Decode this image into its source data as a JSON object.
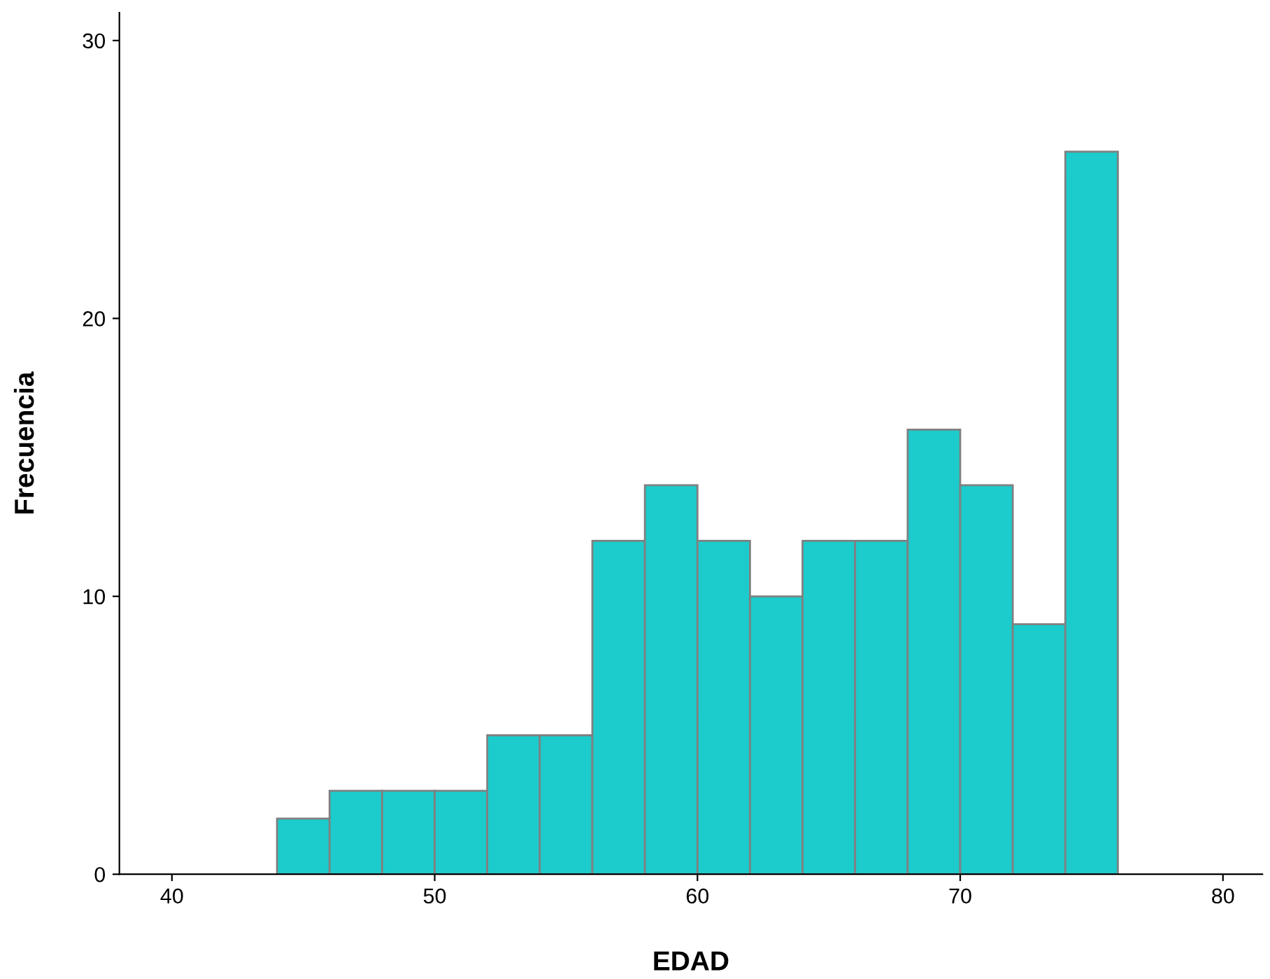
{
  "chart_data": {
    "type": "histogram",
    "xlabel": "EDAD",
    "ylabel": "Frecuencia",
    "bins": [
      44,
      46,
      48,
      50,
      52,
      54,
      56,
      58,
      60,
      62,
      64,
      66,
      68,
      70,
      72,
      74,
      76
    ],
    "values": [
      2,
      3,
      3,
      3,
      5,
      5,
      12,
      14,
      12,
      10,
      12,
      12,
      16,
      14,
      9,
      26
    ],
    "color": "#1ccbcb",
    "xlim": [
      38,
      81.5
    ],
    "xticks": [
      40,
      50,
      60,
      70,
      80
    ],
    "ylim": [
      0,
      31
    ],
    "yticks": [
      0,
      10,
      20,
      30
    ],
    "grid": false
  }
}
